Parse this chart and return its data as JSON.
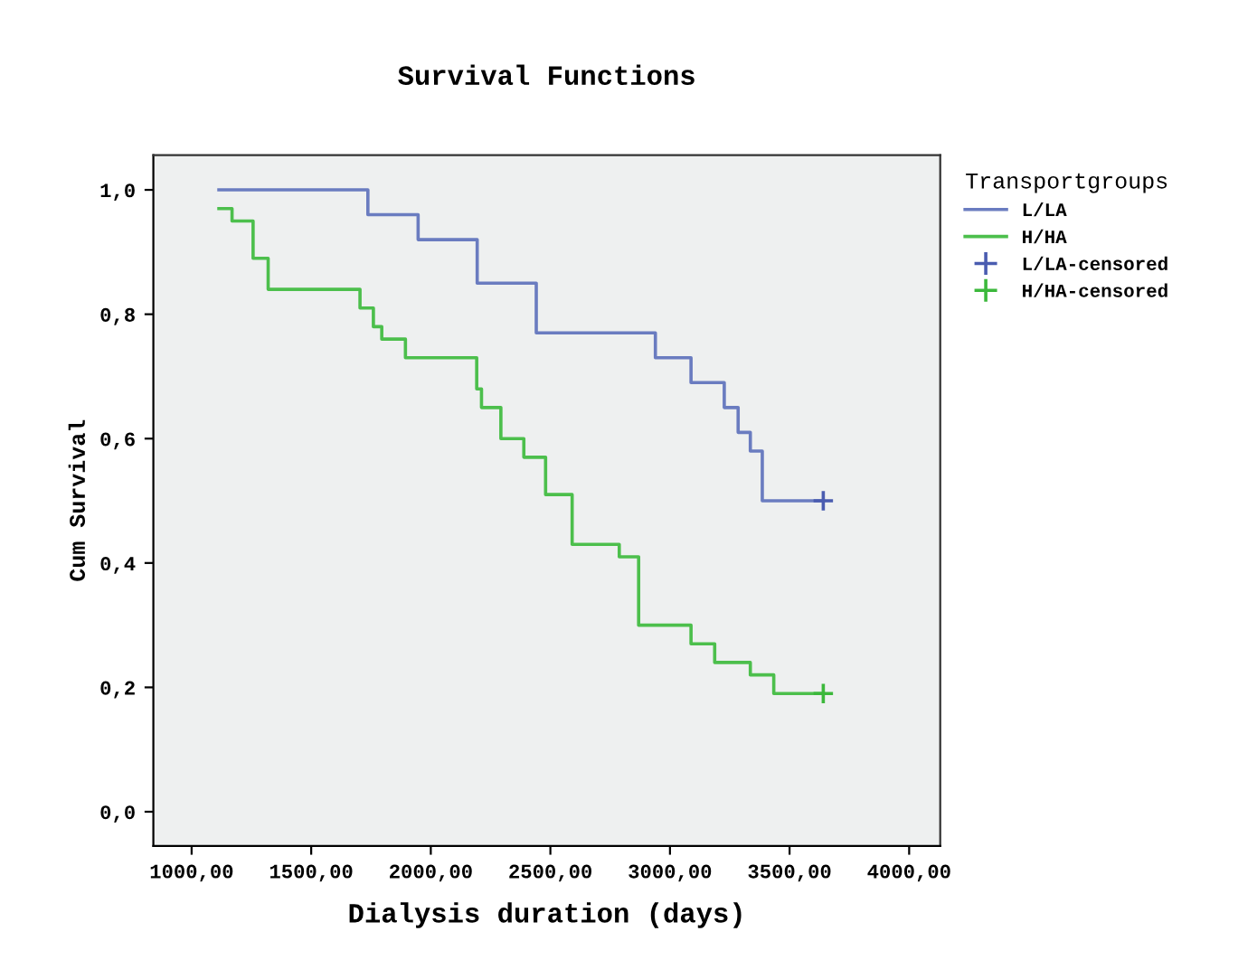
{
  "chart_data": {
    "type": "step",
    "title": "Survival Functions",
    "xlabel": "Dialysis duration (days)",
    "ylabel": "Cum Survival",
    "legend_title": "Transportgroups",
    "legend": "right",
    "grid": false,
    "series": [
      {
        "name": "L/LA",
        "color": "#6a7cc0",
        "line_style": "solid",
        "marker": "none",
        "x": [
          1114,
          1737,
          1947,
          2194,
          2441,
          2939,
          3088,
          3227,
          3285,
          3336,
          3386,
          3641
        ],
        "values": [
          1.0,
          0.96,
          0.92,
          0.85,
          0.77,
          0.73,
          0.69,
          0.65,
          0.61,
          0.58,
          0.5,
          0.5
        ]
      },
      {
        "name": "H/HA",
        "color": "#4cbf4c",
        "line_style": "solid",
        "marker": "none",
        "x": [
          1114,
          1169,
          1257,
          1320,
          1704,
          1760,
          1795,
          1894,
          2192,
          2212,
          2293,
          2389,
          2480,
          2591,
          2788,
          2869,
          3088,
          3187,
          3336,
          3434,
          3641
        ],
        "values": [
          0.97,
          0.95,
          0.89,
          0.84,
          0.81,
          0.78,
          0.76,
          0.73,
          0.68,
          0.65,
          0.6,
          0.57,
          0.51,
          0.43,
          0.41,
          0.3,
          0.27,
          0.24,
          0.22,
          0.19,
          0.19
        ]
      },
      {
        "name": "L/LA-censored",
        "type": "scatter",
        "marker": "cross",
        "color": "#4a5cb0",
        "x": [
          3641
        ],
        "values": [
          0.5
        ]
      },
      {
        "name": "H/HA-censored",
        "type": "scatter",
        "marker": "cross",
        "color": "#3cb83c",
        "x": [
          3641
        ],
        "values": [
          0.19
        ]
      }
    ],
    "xlim": [
      840,
      4130
    ],
    "ylim": [
      -0.055,
      1.056
    ],
    "xticks": [
      {
        "value": 1000,
        "label": "1000,00"
      },
      {
        "value": 1500,
        "label": "1500,00"
      },
      {
        "value": 2000,
        "label": "2000,00"
      },
      {
        "value": 2500,
        "label": "2500,00"
      },
      {
        "value": 3000,
        "label": "3000,00"
      },
      {
        "value": 3500,
        "label": "3500,00"
      },
      {
        "value": 4000,
        "label": "4000,00"
      }
    ],
    "yticks": [
      {
        "value": 0,
        "label": "0,0"
      },
      {
        "value": 0.2,
        "label": "0,2"
      },
      {
        "value": 0.4,
        "label": "0,4"
      },
      {
        "value": 0.6,
        "label": "0,6"
      },
      {
        "value": 0.8,
        "label": "0,8"
      },
      {
        "value": 1.0,
        "label": "1,0"
      }
    ]
  }
}
